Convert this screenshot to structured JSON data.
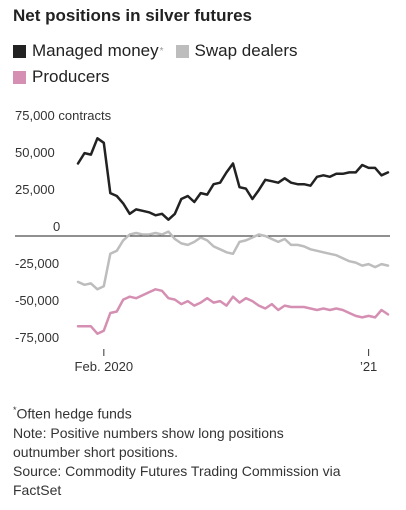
{
  "title": "Net positions in silver futures",
  "legend": [
    {
      "label": "Managed money",
      "marker": "*",
      "color": "#222222"
    },
    {
      "label": "Swap dealers",
      "color": "#bdbdbd"
    },
    {
      "label": "Producers",
      "color": "#d58fb2"
    }
  ],
  "notes": {
    "footnote_marker": "*",
    "footnote": "Often hedge funds",
    "note": "Note: Positive numbers show long positions\noutnumber short positions.",
    "source": "Source: Commodity Futures Trading Commission via\nFactSet"
  },
  "chart_data": {
    "type": "line",
    "y_unit_label": "contracts",
    "ylim": [
      -75000,
      75000
    ],
    "y_ticks": [
      {
        "value": 75000,
        "label": "75,000"
      },
      {
        "value": 50000,
        "label": "50,000"
      },
      {
        "value": 25000,
        "label": "25,000"
      },
      {
        "value": 0,
        "label": "0"
      },
      {
        "value": -25000,
        "label": "-25,000"
      },
      {
        "value": -50000,
        "label": "-50,000"
      },
      {
        "value": -75000,
        "label": "-75,000"
      }
    ],
    "xlim": [
      0,
      48
    ],
    "x_ticks": [
      {
        "x": 4,
        "label": "Feb. 2020"
      },
      {
        "x": 45,
        "label": "’21"
      }
    ],
    "grid": false,
    "zero_line": true,
    "legend_position": "top",
    "series": [
      {
        "name": "Managed money",
        "color": "#222222",
        "x": [
          0,
          1,
          2,
          3,
          4,
          5,
          6,
          7,
          8,
          9,
          10,
          11,
          12,
          13,
          14,
          15,
          16,
          17,
          18,
          19,
          20,
          21,
          22,
          23,
          24,
          25,
          26,
          27,
          28,
          29,
          30,
          31,
          32,
          33,
          34,
          35,
          36,
          37,
          38,
          39,
          40,
          41,
          42,
          43,
          44,
          45,
          46,
          47,
          48
        ],
        "values": [
          49000,
          56000,
          55000,
          66000,
          63000,
          29000,
          27000,
          22000,
          15000,
          18000,
          17000,
          16000,
          14000,
          15000,
          11000,
          15000,
          25000,
          27000,
          23000,
          29000,
          28000,
          35000,
          36000,
          43000,
          49000,
          33000,
          32000,
          25000,
          31000,
          38000,
          37000,
          36000,
          39000,
          36000,
          35000,
          35000,
          34000,
          40000,
          41000,
          40000,
          42000,
          42000,
          43000,
          43000,
          48000,
          46000,
          46000,
          41000,
          43000
        ]
      },
      {
        "name": "Swap dealers",
        "color": "#bdbdbd",
        "x": [
          0,
          1,
          2,
          3,
          4,
          5,
          6,
          7,
          8,
          9,
          10,
          11,
          12,
          13,
          14,
          15,
          16,
          17,
          18,
          19,
          20,
          21,
          22,
          23,
          24,
          25,
          26,
          27,
          28,
          29,
          30,
          31,
          32,
          33,
          34,
          35,
          36,
          37,
          38,
          39,
          40,
          41,
          42,
          43,
          44,
          45,
          46,
          47,
          48
        ],
        "values": [
          -31000,
          -33000,
          -32000,
          -36000,
          -34000,
          -12000,
          -10000,
          -3000,
          1000,
          2000,
          1000,
          1000,
          2000,
          1000,
          3000,
          -2000,
          -5000,
          -6000,
          -4000,
          -1000,
          -3000,
          -7000,
          -9000,
          -11000,
          -12000,
          -4000,
          -3000,
          -1000,
          1000,
          0,
          -2000,
          -4000,
          -2000,
          -6000,
          -6000,
          -7000,
          -9000,
          -10000,
          -11000,
          -12000,
          -13000,
          -15000,
          -17000,
          -18000,
          -20000,
          -19000,
          -21000,
          -19000,
          -20000
        ]
      },
      {
        "name": "Producers",
        "color": "#d58fb2",
        "x": [
          0,
          1,
          2,
          3,
          4,
          5,
          6,
          7,
          8,
          9,
          10,
          11,
          12,
          13,
          14,
          15,
          16,
          17,
          18,
          19,
          20,
          21,
          22,
          23,
          24,
          25,
          26,
          27,
          28,
          29,
          30,
          31,
          32,
          33,
          34,
          35,
          36,
          37,
          38,
          39,
          40,
          41,
          42,
          43,
          44,
          45,
          46,
          47,
          48
        ],
        "values": [
          -61000,
          -61000,
          -61000,
          -66000,
          -64000,
          -52000,
          -51000,
          -43000,
          -41000,
          -42000,
          -40000,
          -38000,
          -36000,
          -37000,
          -42000,
          -43000,
          -46000,
          -44000,
          -47000,
          -45000,
          -42000,
          -45000,
          -44000,
          -47000,
          -41000,
          -45000,
          -42000,
          -44000,
          -47000,
          -49000,
          -46000,
          -50000,
          -47000,
          -48000,
          -48000,
          -48000,
          -49000,
          -50000,
          -49000,
          -50000,
          -49000,
          -50000,
          -52000,
          -54000,
          -55000,
          -54000,
          -55000,
          -50000,
          -53000
        ]
      }
    ]
  }
}
